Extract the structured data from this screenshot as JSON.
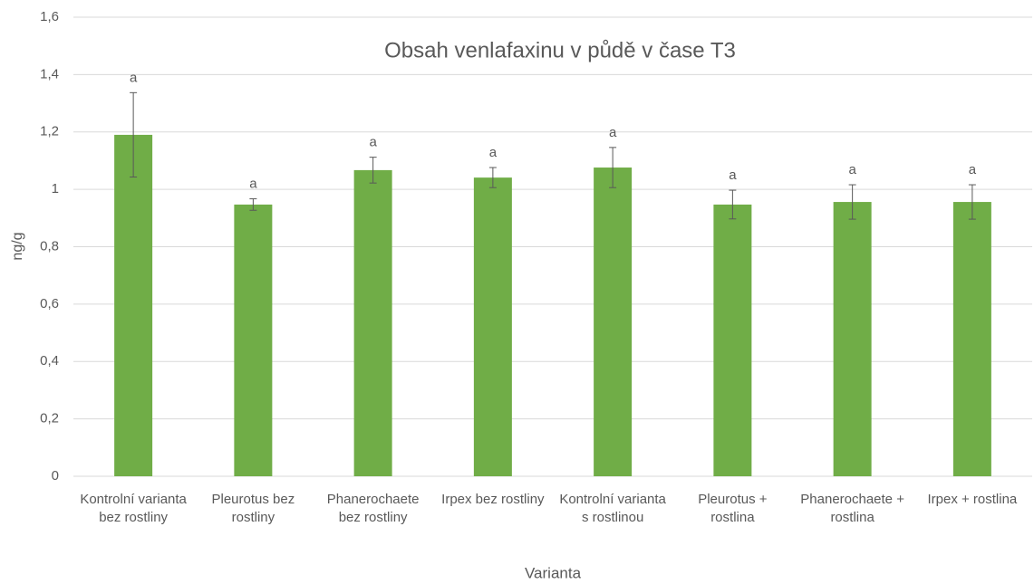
{
  "chart_data": {
    "type": "bar",
    "title": "Obsah venlafaxinu v půdě v čase T3",
    "x_label": "Varianta",
    "y_label": "ng/g",
    "categories": [
      "Kontrolní varianta bez rostliny",
      "Pleurotus bez rostliny",
      "Phanerochaete bez rostliny",
      "Irpex bez rostliny",
      "Kontrolní varianta s rostlinou",
      "Pleurotus + rostlina",
      "Phanerochaete + rostlina",
      "Irpex + rostlina"
    ],
    "values": [
      1.19,
      0.947,
      1.067,
      1.041,
      1.076,
      0.947,
      0.956,
      0.956
    ],
    "errors": [
      0.147,
      0.02,
      0.045,
      0.035,
      0.07,
      0.05,
      0.06,
      0.06
    ],
    "annotations": [
      "a",
      "a",
      "a",
      "a",
      "a",
      "a",
      "a",
      "a"
    ],
    "color": "#70ad47",
    "ylim": [
      0,
      1.6
    ],
    "yticks": [
      0,
      {
        "value": 0.2,
        "label": "0,2"
      },
      {
        "value": 0.4,
        "label": "0,4"
      },
      {
        "value": 0.6,
        "label": "0,6"
      },
      {
        "value": 0.8,
        "label": "0,8"
      },
      1,
      {
        "value": 1.2,
        "label": "1,2"
      },
      {
        "value": 1.4,
        "label": "1,4"
      },
      {
        "value": 1.6,
        "label": "1,6"
      }
    ],
    "grid": true
  }
}
